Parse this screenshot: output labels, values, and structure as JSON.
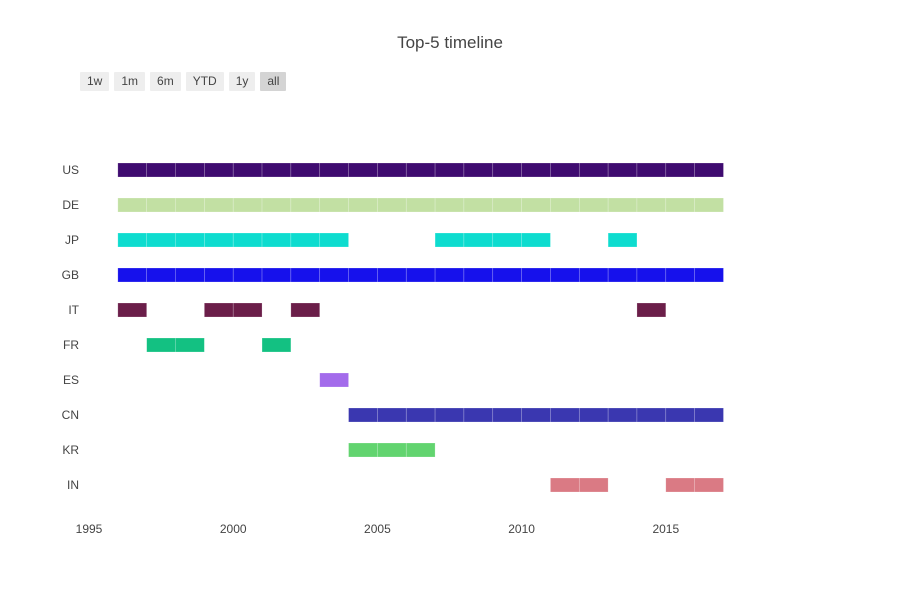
{
  "chart_data": {
    "type": "timeline",
    "title": "Top-5 timeline",
    "range_buttons": [
      {
        "label": "1w",
        "active": false
      },
      {
        "label": "1m",
        "active": false
      },
      {
        "label": "6m",
        "active": false
      },
      {
        "label": "YTD",
        "active": false
      },
      {
        "label": "1y",
        "active": false
      },
      {
        "label": "all",
        "active": true
      }
    ],
    "xlim": [
      1995,
      2020
    ],
    "x_ticks": [
      1995,
      2000,
      2005,
      2010,
      2015
    ],
    "grid": false,
    "categories": [
      "US",
      "DE",
      "JP",
      "GB",
      "IT",
      "FR",
      "ES",
      "CN",
      "KR",
      "IN"
    ],
    "series": [
      {
        "name": "US",
        "color": "#3f0b70",
        "years": [
          1996,
          1997,
          1998,
          1999,
          2000,
          2001,
          2002,
          2003,
          2004,
          2005,
          2006,
          2007,
          2008,
          2009,
          2010,
          2011,
          2012,
          2013,
          2014,
          2015,
          2016
        ]
      },
      {
        "name": "DE",
        "color": "#c2e0a3",
        "years": [
          1996,
          1997,
          1998,
          1999,
          2000,
          2001,
          2002,
          2003,
          2004,
          2005,
          2006,
          2007,
          2008,
          2009,
          2010,
          2011,
          2012,
          2013,
          2014,
          2015,
          2016
        ]
      },
      {
        "name": "JP",
        "color": "#0edccf",
        "years": [
          1996,
          1997,
          1998,
          1999,
          2000,
          2001,
          2002,
          2003,
          2007,
          2008,
          2009,
          2010,
          2013
        ]
      },
      {
        "name": "GB",
        "color": "#1611ec",
        "years": [
          1996,
          1997,
          1998,
          1999,
          2000,
          2001,
          2002,
          2003,
          2004,
          2005,
          2006,
          2007,
          2008,
          2009,
          2010,
          2011,
          2012,
          2013,
          2014,
          2015,
          2016
        ]
      },
      {
        "name": "IT",
        "color": "#6b1e49",
        "years": [
          1996,
          1999,
          2000,
          2002,
          2014
        ]
      },
      {
        "name": "FR",
        "color": "#13c182",
        "years": [
          1997,
          1998,
          2001
        ]
      },
      {
        "name": "ES",
        "color": "#a36beb",
        "years": [
          2003
        ]
      },
      {
        "name": "CN",
        "color": "#3a37b0",
        "years": [
          2004,
          2005,
          2006,
          2007,
          2008,
          2009,
          2010,
          2011,
          2012,
          2013,
          2014,
          2015,
          2016
        ]
      },
      {
        "name": "KR",
        "color": "#62d46f",
        "years": [
          2004,
          2005,
          2006
        ]
      },
      {
        "name": "IN",
        "color": "#da7a84",
        "years": [
          2011,
          2012,
          2015,
          2016
        ]
      }
    ]
  }
}
